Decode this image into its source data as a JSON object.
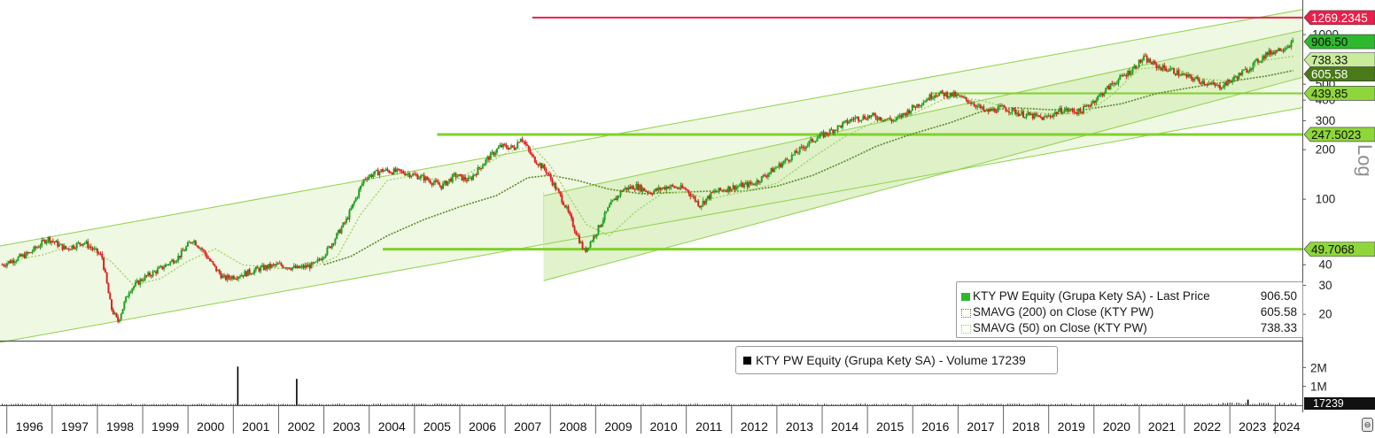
{
  "chart_data": [
    {
      "type": "line",
      "scale": "log",
      "ylim": [
        15,
        1400
      ],
      "ylabel": "Log",
      "y_ticks": [
        20,
        30,
        40,
        100,
        200,
        300,
        400,
        500,
        1000
      ],
      "x_ticks": [
        "1996",
        "1997",
        "1998",
        "1999",
        "2000",
        "2001",
        "2002",
        "2003",
        "2004",
        "2005",
        "2006",
        "2007",
        "2008",
        "2009",
        "2010",
        "2011",
        "2012",
        "2013",
        "2014",
        "2015",
        "2016",
        "2017",
        "2018",
        "2019",
        "2020",
        "2021",
        "2022",
        "2023",
        "2024"
      ],
      "grid": false,
      "legend_position": "bottom-right",
      "series": [
        {
          "name": "KTY PW Equity (Grupa Kety SA) - Last Price",
          "last_value": "906.50",
          "color": "#2eb82e",
          "x": [
            1995.9,
            1996.5,
            1996.9,
            1997.3,
            1997.7,
            1998.1,
            1998.3,
            1998.45,
            1998.7,
            1999.0,
            1999.4,
            1999.8,
            2000.1,
            2000.3,
            2000.6,
            2000.8,
            2001.2,
            2001.6,
            2002.0,
            2002.4,
            2002.8,
            2003.1,
            2003.5,
            2003.9,
            2004.3,
            2004.8,
            2005.2,
            2005.6,
            2005.9,
            2006.2,
            2006.6,
            2006.9,
            2007.2,
            2007.35,
            2007.6,
            2007.9,
            2008.3,
            2008.6,
            2008.75,
            2009.0,
            2009.3,
            2009.6,
            2009.9,
            2010.2,
            2010.6,
            2011.0,
            2011.3,
            2011.6,
            2012.0,
            2012.5,
            2012.9,
            2013.3,
            2013.8,
            2014.2,
            2014.7,
            2015.1,
            2015.6,
            2016.0,
            2016.5,
            2016.9,
            2017.3,
            2017.6,
            2018.0,
            2018.4,
            2018.9,
            2019.3,
            2019.7,
            2020.1,
            2020.4,
            2020.8,
            2021.1,
            2021.4,
            2021.7,
            2022.0,
            2022.4,
            2022.75,
            2023.0,
            2023.4,
            2023.8,
            2024.2,
            2024.4
          ],
          "y": [
            40,
            47,
            58,
            50,
            55,
            45,
            22,
            18,
            28,
            33,
            38,
            45,
            57,
            50,
            38,
            33,
            35,
            38,
            40,
            38,
            40,
            50,
            75,
            135,
            150,
            145,
            135,
            120,
            140,
            130,
            175,
            210,
            205,
            240,
            180,
            150,
            95,
            60,
            48,
            62,
            90,
            115,
            120,
            110,
            120,
            115,
            92,
            110,
            118,
            125,
            150,
            180,
            230,
            260,
            310,
            320,
            300,
            360,
            440,
            430,
            390,
            340,
            360,
            330,
            310,
            350,
            340,
            420,
            500,
            600,
            720,
            640,
            610,
            560,
            520,
            480,
            520,
            620,
            760,
            840,
            900
          ]
        },
        {
          "name": "SMAVG (200)  on Close (KTY PW)",
          "last_value": "605.58",
          "color": "#5a8a2a",
          "x": [
            2003.0,
            2003.6,
            2004.4,
            2005.2,
            2006.0,
            2006.8,
            2007.5,
            2008.0,
            2008.6,
            2009.3,
            2010.0,
            2010.8,
            2011.5,
            2012.3,
            2013.0,
            2013.8,
            2014.5,
            2015.2,
            2016.0,
            2016.8,
            2017.5,
            2018.2,
            2019.0,
            2019.8,
            2020.6,
            2021.4,
            2022.2,
            2023.0,
            2023.8,
            2024.4
          ],
          "y": [
            40,
            45,
            60,
            75,
            90,
            105,
            135,
            140,
            130,
            115,
            108,
            110,
            112,
            112,
            120,
            140,
            170,
            210,
            250,
            290,
            340,
            360,
            350,
            350,
            380,
            440,
            480,
            520,
            560,
            605
          ]
        },
        {
          "name": "SMAVG (50)  on Close (KTY PW)",
          "last_value": "738.33",
          "color": "#9bd25e",
          "x": [
            1996.0,
            1996.8,
            1997.6,
            1998.3,
            1998.8,
            1999.4,
            2000.0,
            2000.6,
            2001.2,
            2002.0,
            2002.8,
            2003.3,
            2003.8,
            2004.4,
            2005.0,
            2005.8,
            2006.5,
            2007.1,
            2007.6,
            2008.0,
            2008.4,
            2008.8,
            2009.3,
            2009.9,
            2010.5,
            2011.0,
            2011.5,
            2012.2,
            2013.0,
            2013.8,
            2014.5,
            2015.2,
            2016.0,
            2016.8,
            2017.5,
            2018.2,
            2019.0,
            2019.8,
            2020.4,
            2021.0,
            2021.7,
            2022.4,
            2023.0,
            2023.8,
            2024.4
          ],
          "y": [
            42,
            46,
            54,
            42,
            30,
            33,
            42,
            50,
            40,
            38,
            39,
            45,
            80,
            130,
            140,
            125,
            160,
            195,
            210,
            160,
            105,
            70,
            60,
            85,
            110,
            110,
            100,
            110,
            125,
            180,
            240,
            300,
            330,
            420,
            400,
            350,
            330,
            330,
            430,
            620,
            640,
            540,
            520,
            700,
            738
          ]
        },
        {
          "name": "Horizontal level",
          "last_value": "1269.2345",
          "color": "#e8204a"
        },
        {
          "name": "Horizontal level",
          "last_value": "439.85",
          "color": "#7fd12a"
        },
        {
          "name": "Horizontal level",
          "last_value": "247.5023",
          "color": "#7fd12a"
        },
        {
          "name": "Horizontal level",
          "last_value": "49.7068",
          "color": "#7fd12a"
        }
      ]
    },
    {
      "type": "bar",
      "name": "KTY PW Equity (Grupa Kety SA) - Volume",
      "last_value": "17239",
      "y_ticks": [
        "1M",
        "2M"
      ],
      "ylim": [
        0,
        3000000
      ],
      "spikes": {
        "x": [
          2001.1,
          2002.4,
          2023.4
        ],
        "y": [
          2050000,
          1400000,
          300000
        ]
      }
    }
  ],
  "colors": {
    "channel_fill": "#eaf6d8",
    "channel_line": "#8fd14b",
    "price_up": "#1fa21f",
    "price_down": "#e02020",
    "axis": "#333333"
  }
}
